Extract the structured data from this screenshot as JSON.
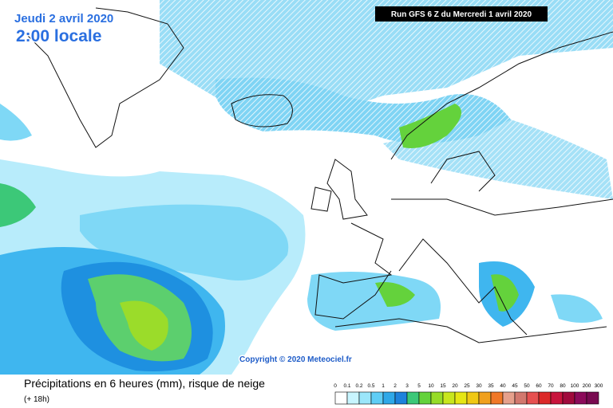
{
  "header": {
    "date": "Jeudi 2 avril 2020",
    "time": "2:00 locale",
    "run": "Run GFS 6 Z du Mercredi 1 avril 2020"
  },
  "map": {
    "copyright": "Copyright © 2020 Meteociel.fr"
  },
  "footer": {
    "title": "Précipitations en 6 heures (mm), risque de neige",
    "lead": "(+ 18h)"
  },
  "legend": {
    "ticks": [
      0,
      0.1,
      0.2,
      0.5,
      1,
      2,
      3,
      5,
      10,
      15,
      20,
      25,
      30,
      35,
      40,
      45,
      50,
      60,
      70,
      80,
      100,
      200,
      300
    ],
    "colors": [
      "#ffffff",
      "#c8f5ff",
      "#9be6fa",
      "#5fcdf5",
      "#2fa8e8",
      "#1e82dc",
      "#3cc878",
      "#64d23c",
      "#96dc28",
      "#c8e61e",
      "#e6e614",
      "#f0c814",
      "#f0a01e",
      "#f07828",
      "#e6a08c",
      "#d2786e",
      "#e65050",
      "#dc2828",
      "#c8143c",
      "#a00a3c",
      "#8c0a5a",
      "#780a50"
    ]
  }
}
